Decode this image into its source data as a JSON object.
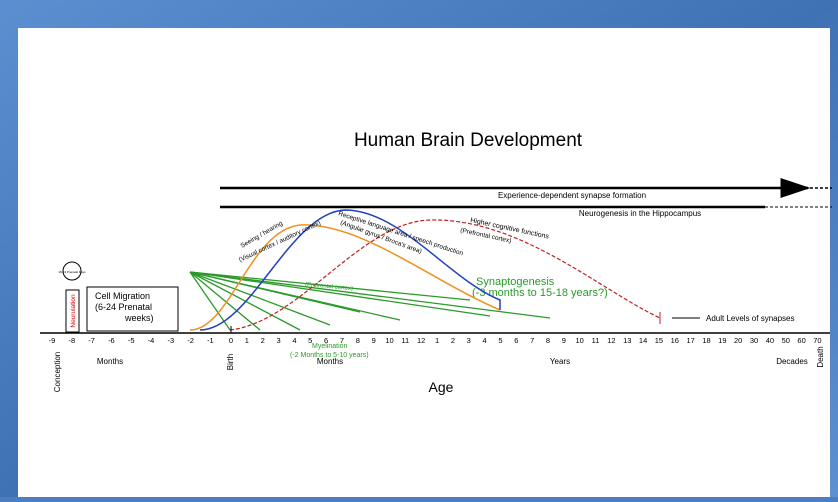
{
  "title": "Human Brain Development",
  "bars": {
    "experience": "Experience-dependent synapse formation",
    "neurogenesis": "Neurogenesis in the Hippocampus"
  },
  "prenatal": {
    "days": "18-24 Prenatal Days",
    "neurulation": "Neurulation",
    "cell_migration": [
      "Cell Migration",
      "(6-24 Prenatal",
      "weeks)"
    ]
  },
  "curves": {
    "seeing": "Seeing / hearing",
    "seeing_sub": "(Visual cortex / auditory cortex)",
    "language": "Receptive language area / speech production",
    "language_sub": "(Angular gyrus / Broca's area)",
    "cognitive": "Higher cognitive functions",
    "cognitive_sub": "(Prefrontal cortex)"
  },
  "green": {
    "prefrontal": "(Prefrontal cortex)",
    "myelination": "Myelination",
    "myelination_range": "(-2 Months to 5-10 years)",
    "synaptogenesis": "Synaptogenesis",
    "synaptogenesis_range": "(-3 months to 15-18 years?)"
  },
  "adult": "Adult Levels of synapses",
  "axis": {
    "prenatal_ticks": [
      "-9",
      "-8",
      "-7",
      "-6",
      "-5",
      "-4",
      "-3",
      "-2",
      "-1"
    ],
    "month_ticks": [
      "0",
      "1",
      "2",
      "3",
      "4",
      "5",
      "6",
      "7",
      "8",
      "9",
      "10",
      "11",
      "12"
    ],
    "year_ticks": [
      "1",
      "2",
      "3",
      "4",
      "5",
      "6",
      "7",
      "8",
      "9",
      "10",
      "11",
      "12",
      "13",
      "14",
      "15",
      "16",
      "17",
      "18",
      "19",
      "20"
    ],
    "decade_ticks": [
      "30",
      "40",
      "50",
      "60",
      "70"
    ],
    "conception": "Conception",
    "months_prenatal": "Months",
    "birth": "Birth",
    "months": "Months",
    "years": "Years",
    "decades": "Decades",
    "death": "Death",
    "label": "Age"
  }
}
